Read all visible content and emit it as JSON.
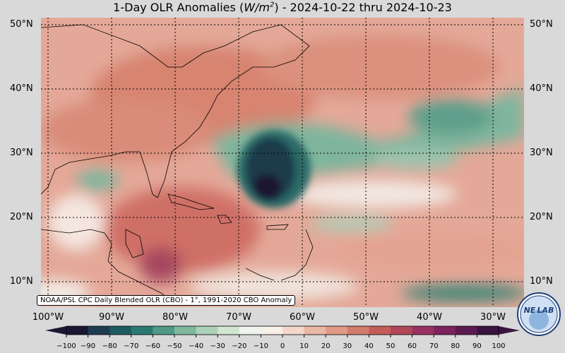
{
  "title": {
    "prefix": "1-Day OLR Anomalies (",
    "unit_main": "W/m",
    "unit_sup": "2",
    "suffix": ") - 2024-10-22 thru 2024-10-23"
  },
  "map": {
    "lat_labels": [
      "50°N",
      "40°N",
      "30°N",
      "20°N",
      "10°N"
    ],
    "lat_labels_right": [
      "50°N",
      "40°N",
      "30°N",
      "20°N",
      "10°N"
    ],
    "lon_labels": [
      "100°W",
      "90°W",
      "80°W",
      "70°W",
      "60°W",
      "50°W",
      "40°W",
      "30°W"
    ],
    "credit": "NOAA/PSL CPC Daily Blended OLR (CBO) - 1°, 1991-2020 CBO Anomaly",
    "background_color": "#e8a090",
    "negative_color": "#1b3a4b",
    "positive_color": "#c96a5a"
  },
  "colorbar": {
    "ticks": [
      "−100",
      "−90",
      "−80",
      "−70",
      "−60",
      "−50",
      "−40",
      "−30",
      "−20",
      "−10",
      "0",
      "10",
      "20",
      "30",
      "40",
      "50",
      "60",
      "70",
      "80",
      "90",
      "100"
    ],
    "colors": [
      "#1a1733",
      "#1f3b52",
      "#1f5a5f",
      "#2a7a72",
      "#4e9a86",
      "#80b89e",
      "#acd0b8",
      "#d2e4d2",
      "#eef3ee",
      "#f7efe8",
      "#f4d6cb",
      "#eab8a6",
      "#e09a86",
      "#d27c6c",
      "#c45e58",
      "#b14657",
      "#983260",
      "#7c2360",
      "#5d1a52",
      "#3b1340"
    ]
  },
  "logo": {
    "text": "NE LAB"
  }
}
